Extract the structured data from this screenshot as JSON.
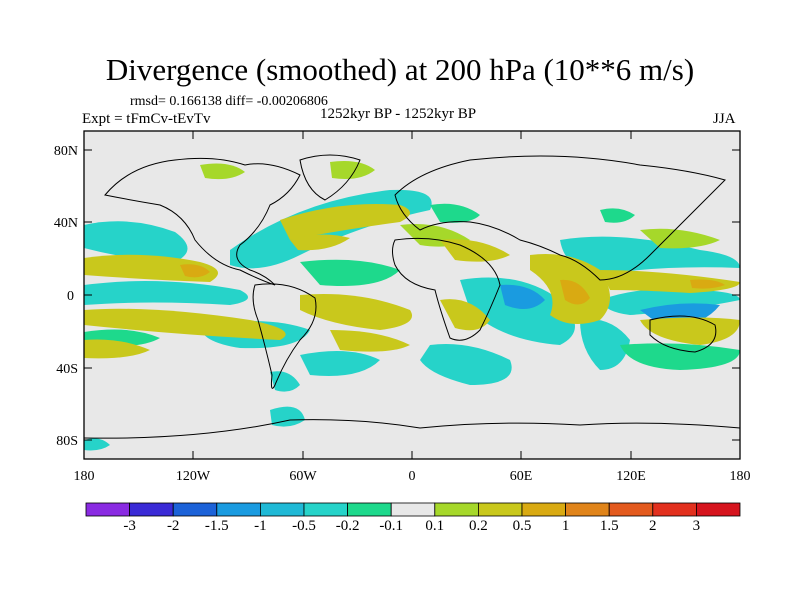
{
  "title": "Divergence (smoothed) at 200 hPa (10**6 m/s)",
  "stats": "rmsd= 0.166138 diff= -0.00206806",
  "experiment": "Expt = tFmCv-tEvTv",
  "period": "1252kyr BP - 1252kyr BP",
  "season": "JJA",
  "lat_labels": [
    "80N",
    "40N",
    "0",
    "40S",
    "80S"
  ],
  "lon_labels": [
    "180",
    "120W",
    "60W",
    "0",
    "60E",
    "120E",
    "180"
  ],
  "colorbar": {
    "labels": [
      "-3",
      "-2",
      "-1.5",
      "-1",
      "-0.5",
      "-0.2",
      "-0.1",
      "0.1",
      "0.2",
      "0.5",
      "1",
      "1.5",
      "2",
      "3"
    ],
    "colors": [
      "#8a2be2",
      "#3a2ad6",
      "#1c62d8",
      "#1a9be0",
      "#1fb9d6",
      "#26d3c9",
      "#1ed98c",
      "#e8e8e8",
      "#a6d82a",
      "#c9c81c",
      "#d9aa12",
      "#e0841a",
      "#e35a1e",
      "#e2301e",
      "#d6141e"
    ]
  }
}
